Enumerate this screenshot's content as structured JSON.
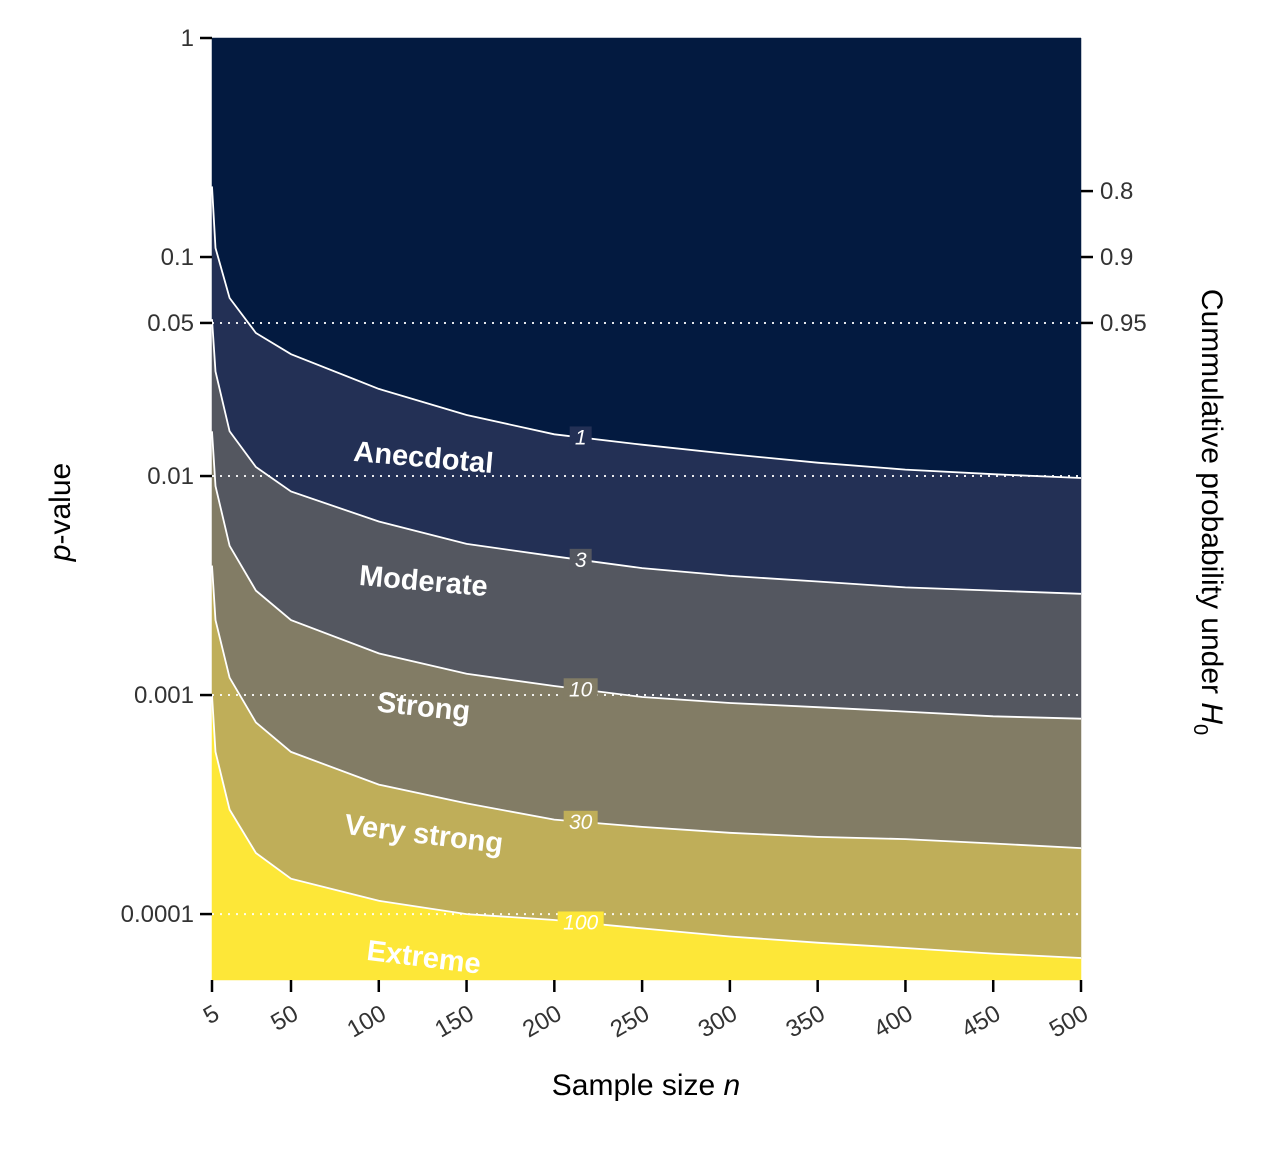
{
  "chart_data": {
    "type": "area",
    "xlabel": {
      "prefix": "Sample size ",
      "italic": "n"
    },
    "ylabel": {
      "italic": "p",
      "suffix": "-value"
    },
    "y2label": {
      "prefix": "Cummulative probability under ",
      "italic": "H",
      "sub": "0"
    },
    "x_range": [
      5,
      500
    ],
    "y_range": [
      5e-05,
      1
    ],
    "y_scale": "log",
    "x_ticks": [
      "5",
      "50",
      "100",
      "150",
      "200",
      "250",
      "300",
      "350",
      "400",
      "450",
      "500"
    ],
    "x_tick_values": [
      5,
      50,
      100,
      150,
      200,
      250,
      300,
      350,
      400,
      450,
      500
    ],
    "y_ticks": [
      {
        "value": 1,
        "label": "1"
      },
      {
        "value": 0.1,
        "label": "0.1"
      },
      {
        "value": 0.05,
        "label": "0.05"
      },
      {
        "value": 0.01,
        "label": "0.01"
      },
      {
        "value": 0.001,
        "label": "0.001"
      },
      {
        "value": 0.0001,
        "label": "0.0001"
      }
    ],
    "y2_ticks": [
      {
        "value": 0.2,
        "label": "0.8"
      },
      {
        "value": 0.1,
        "label": "0.9"
      },
      {
        "value": 0.05,
        "label": "0.95"
      }
    ],
    "reference_lines_p": [
      0.05,
      0.01,
      0.001,
      0.0001
    ],
    "contours": [
      {
        "label": "1",
        "label_x": 215,
        "points": [
          [
            5,
            0.21
          ],
          [
            7,
            0.11
          ],
          [
            15,
            0.065
          ],
          [
            30,
            0.045
          ],
          [
            50,
            0.036
          ],
          [
            100,
            0.025
          ],
          [
            150,
            0.019
          ],
          [
            200,
            0.0155
          ],
          [
            250,
            0.0139
          ],
          [
            300,
            0.0126
          ],
          [
            350,
            0.0115
          ],
          [
            400,
            0.0107
          ],
          [
            450,
            0.0102
          ],
          [
            500,
            0.0098
          ]
        ]
      },
      {
        "label": "3",
        "label_x": 215,
        "points": [
          [
            5,
            0.052
          ],
          [
            7,
            0.03
          ],
          [
            15,
            0.016
          ],
          [
            30,
            0.011
          ],
          [
            50,
            0.0085
          ],
          [
            100,
            0.0062
          ],
          [
            150,
            0.0049
          ],
          [
            200,
            0.0043
          ],
          [
            250,
            0.0038
          ],
          [
            300,
            0.0035
          ],
          [
            350,
            0.0033
          ],
          [
            400,
            0.0031
          ],
          [
            450,
            0.003
          ],
          [
            500,
            0.0029
          ]
        ]
      },
      {
        "label": "10",
        "label_x": 215,
        "points": [
          [
            5,
            0.016
          ],
          [
            7,
            0.009
          ],
          [
            15,
            0.0048
          ],
          [
            30,
            0.003
          ],
          [
            50,
            0.0022
          ],
          [
            100,
            0.00155
          ],
          [
            150,
            0.00125
          ],
          [
            200,
            0.0011
          ],
          [
            250,
            0.00098
          ],
          [
            300,
            0.00092
          ],
          [
            350,
            0.00088
          ],
          [
            400,
            0.00084
          ],
          [
            450,
            0.0008
          ],
          [
            500,
            0.00078
          ]
        ]
      },
      {
        "label": "30",
        "label_x": 215,
        "points": [
          [
            5,
            0.0039
          ],
          [
            7,
            0.0022
          ],
          [
            15,
            0.0012
          ],
          [
            30,
            0.00075
          ],
          [
            50,
            0.00055
          ],
          [
            100,
            0.00039
          ],
          [
            150,
            0.00032
          ],
          [
            200,
            0.00027
          ],
          [
            250,
            0.00025
          ],
          [
            300,
            0.000235
          ],
          [
            350,
            0.000225
          ],
          [
            400,
            0.00022
          ],
          [
            450,
            0.00021
          ],
          [
            500,
            0.0002
          ]
        ]
      },
      {
        "label": "100",
        "label_x": 215,
        "points": [
          [
            5,
            0.001
          ],
          [
            7,
            0.00055
          ],
          [
            15,
            0.0003
          ],
          [
            30,
            0.00019
          ],
          [
            50,
            0.000145
          ],
          [
            100,
            0.000115
          ],
          [
            150,
            0.0001
          ],
          [
            200,
            9.4e-05
          ],
          [
            250,
            8.6e-05
          ],
          [
            300,
            7.9e-05
          ],
          [
            350,
            7.4e-05
          ],
          [
            400,
            7e-05
          ],
          [
            450,
            6.6e-05
          ],
          [
            500,
            6.3e-05
          ]
        ]
      }
    ],
    "bands": [
      {
        "name": "",
        "color": "#031a40"
      },
      {
        "name": "Anecdotal",
        "color": "#233055",
        "label_x": 125,
        "label_p": 0.011,
        "rotate": 5
      },
      {
        "name": "Moderate",
        "color": "#545760",
        "label_x": 125,
        "label_p": 0.003,
        "rotate": 5
      },
      {
        "name": "Strong",
        "color": "#827c65",
        "label_x": 125,
        "label_p": 0.0008,
        "rotate": 6
      },
      {
        "name": "Very strong",
        "color": "#bfae59",
        "label_x": 125,
        "label_p": 0.00021,
        "rotate": 7
      },
      {
        "name": "Extreme",
        "color": "#fde738",
        "label_x": 125,
        "label_p": 5.75e-05,
        "rotate": 7
      }
    ]
  }
}
